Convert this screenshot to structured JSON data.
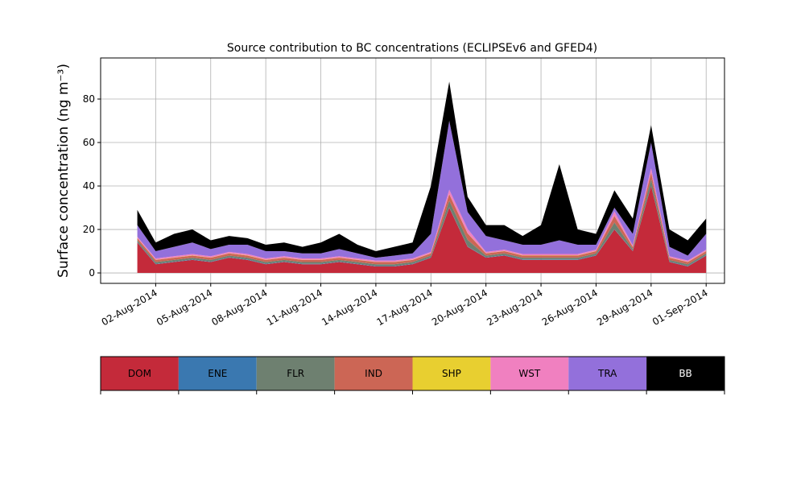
{
  "chart_data": {
    "type": "stacked_area",
    "title": "Source contribution to BC concentrations (ECLIPSEv6 and GFED4)",
    "y_label": "Surface concentration (ng m⁻³)",
    "x": [
      "01-Aug-2014",
      "02-Aug-2014",
      "03-Aug-2014",
      "04-Aug-2014",
      "05-Aug-2014",
      "06-Aug-2014",
      "07-Aug-2014",
      "08-Aug-2014",
      "09-Aug-2014",
      "10-Aug-2014",
      "11-Aug-2014",
      "12-Aug-2014",
      "13-Aug-2014",
      "14-Aug-2014",
      "15-Aug-2014",
      "16-Aug-2014",
      "17-Aug-2014",
      "18-Aug-2014",
      "19-Aug-2014",
      "20-Aug-2014",
      "21-Aug-2014",
      "22-Aug-2014",
      "23-Aug-2014",
      "24-Aug-2014",
      "25-Aug-2014",
      "26-Aug-2014",
      "27-Aug-2014",
      "28-Aug-2014",
      "29-Aug-2014",
      "30-Aug-2014",
      "31-Aug-2014",
      "01-Sep-2014"
    ],
    "series": [
      {
        "name": "DOM",
        "color": "#c42a3a",
        "values": [
          14,
          4,
          5,
          6,
          5,
          7,
          6,
          4,
          5,
          4,
          4,
          5,
          4,
          3,
          3,
          4,
          7,
          30,
          12,
          7,
          8,
          6,
          6,
          6,
          6,
          8,
          20,
          10,
          40,
          5,
          3,
          8
        ]
      },
      {
        "name": "ENE",
        "color": "#3a78b0",
        "values": [
          0.2,
          0.2,
          0.2,
          0.2,
          0.2,
          0.2,
          0.2,
          0.2,
          0.2,
          0.2,
          0.2,
          0.2,
          0.2,
          0.2,
          0.2,
          0.2,
          0.2,
          0.2,
          0.2,
          0.2,
          0.2,
          0.2,
          0.2,
          0.2,
          0.2,
          0.2,
          0.2,
          0.2,
          0.2,
          0.2,
          0.2,
          0.2
        ]
      },
      {
        "name": "FLR",
        "color": "#6e8070",
        "values": [
          0.8,
          0.8,
          0.8,
          0.8,
          0.8,
          0.8,
          0.8,
          0.8,
          0.8,
          0.8,
          0.8,
          0.8,
          0.8,
          0.8,
          0.8,
          0.8,
          0.8,
          3,
          3,
          0.8,
          0.8,
          0.8,
          0.8,
          0.8,
          0.8,
          0.8,
          3,
          0.8,
          3,
          0.8,
          0.8,
          0.8
        ]
      },
      {
        "name": "IND",
        "color": "#cc6655",
        "values": [
          1,
          1,
          1,
          1,
          1,
          1,
          1,
          1,
          1,
          1,
          1,
          1,
          1,
          1,
          1,
          1,
          1,
          3,
          3,
          1,
          1,
          1,
          1,
          1,
          1,
          1,
          3,
          1,
          3,
          1,
          1,
          1
        ]
      },
      {
        "name": "SHP",
        "color": "#e8cf30",
        "values": [
          0.1,
          0.1,
          0.1,
          0.1,
          0.1,
          0.1,
          0.1,
          0.1,
          0.1,
          0.1,
          0.1,
          0.1,
          0.1,
          0.1,
          0.1,
          0.1,
          0.1,
          0.1,
          0.1,
          0.1,
          0.1,
          0.1,
          0.1,
          0.1,
          0.1,
          0.1,
          0.1,
          0.1,
          0.1,
          0.1,
          0.1,
          0.1
        ]
      },
      {
        "name": "WST",
        "color": "#f080c0",
        "values": [
          0.6,
          0.6,
          0.6,
          0.6,
          0.6,
          0.6,
          0.6,
          0.6,
          0.6,
          0.6,
          0.6,
          0.6,
          0.6,
          0.6,
          0.6,
          0.6,
          0.6,
          2,
          2,
          0.6,
          0.6,
          0.6,
          0.6,
          0.6,
          0.6,
          0.6,
          2,
          0.6,
          2,
          0.6,
          0.6,
          0.6
        ]
      },
      {
        "name": "TRA",
        "color": "#9370db",
        "values": [
          5.3,
          3.3,
          4.3,
          5.3,
          3.3,
          3.3,
          4.3,
          3.3,
          2.3,
          2.3,
          2.3,
          3.3,
          2.3,
          1.3,
          2.3,
          2.3,
          8.3,
          31.7,
          7.7,
          7.3,
          4.3,
          4.3,
          4.3,
          6.3,
          4.3,
          2.3,
          1.7,
          5.3,
          11.7,
          4.3,
          2.3,
          7.3
        ]
      },
      {
        "name": "BB",
        "color": "#000000",
        "values": [
          7,
          4,
          6,
          6,
          4,
          4,
          3,
          3,
          4,
          3,
          5,
          7,
          4,
          3,
          4,
          5,
          22,
          18,
          7,
          5,
          7,
          4,
          9,
          35,
          7,
          5,
          8,
          7,
          8,
          8,
          7,
          7
        ]
      }
    ],
    "xlim": [
      "30-Jul-2014",
      "02-Sep-2014"
    ],
    "xticks": [
      "02-Aug-2014",
      "05-Aug-2014",
      "08-Aug-2014",
      "11-Aug-2014",
      "14-Aug-2014",
      "17-Aug-2014",
      "20-Aug-2014",
      "23-Aug-2014",
      "26-Aug-2014",
      "29-Aug-2014",
      "01-Sep-2014"
    ],
    "ylim": [
      -4.8,
      98.9
    ],
    "yticks": [
      0,
      20,
      40,
      60,
      80
    ],
    "grid": true
  }
}
